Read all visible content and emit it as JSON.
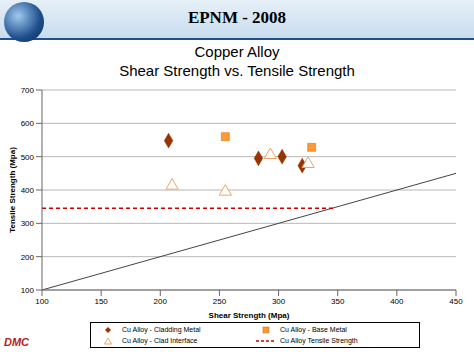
{
  "header": "EPNM - 2008",
  "logo": "DMC",
  "chart_data": {
    "type": "scatter",
    "title": "Copper Alloy",
    "subtitle": "Shear Strength vs. Tensile Strength",
    "x_label": "Shear Strength (Mpa)",
    "y_label": "Tensile Strength (Mpa)",
    "xlim": [
      100,
      450
    ],
    "xticks": [
      100,
      150,
      200,
      250,
      300,
      350,
      400,
      450
    ],
    "ylim": [
      100,
      700
    ],
    "yticks": [
      100,
      200,
      300,
      400,
      500,
      600,
      700
    ],
    "grid": true,
    "legend": "bottom",
    "series": [
      {
        "name": "Cu Alloy - Cladding Metal",
        "type": "scatter",
        "marker": "diamond",
        "color": "#993300",
        "x": [
          207,
          283,
          303,
          320
        ],
        "values": [
          548,
          495,
          500,
          473
        ]
      },
      {
        "name": "Cu Alloy - Base Metal",
        "type": "scatter",
        "marker": "square",
        "color": "#ff9933",
        "x": [
          255,
          328
        ],
        "values": [
          560,
          528
        ]
      },
      {
        "name": "Cu Alloy - Clad Interface",
        "type": "scatter",
        "marker": "triangle",
        "color": "#f4a460",
        "x": [
          210,
          255,
          293,
          325
        ],
        "values": [
          413,
          395,
          505,
          478
        ]
      },
      {
        "name": "Cu Alloy Tensile Strength",
        "type": "line",
        "line_style": "dashed",
        "color": "#cc0000",
        "x": [
          100,
          348
        ],
        "values": [
          345,
          345
        ]
      }
    ],
    "reference_line": {
      "type": "line",
      "line_style": "solid",
      "color": "#444444",
      "x": [
        100,
        450
      ],
      "values": [
        100,
        450
      ]
    }
  }
}
